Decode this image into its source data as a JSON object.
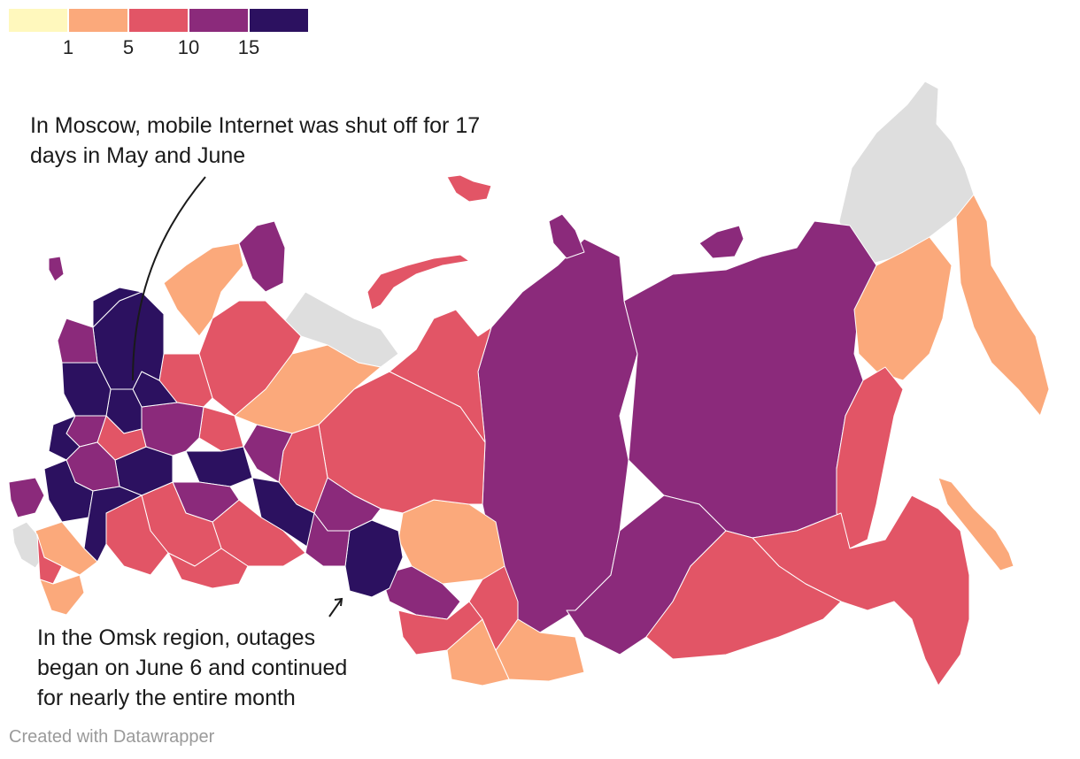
{
  "legend": {
    "colors": [
      "#fff8bd",
      "#fba97b",
      "#e25566",
      "#8b2a7b",
      "#2c1160"
    ],
    "tick_labels": [
      "1",
      "5",
      "10",
      "15"
    ]
  },
  "colors": {
    "no_data": "#dedede",
    "background": "#ffffff"
  },
  "annotations": {
    "moscow": "In Moscow, mobile Internet was shut off for 17 days in May and June",
    "omsk": "In the Omsk region, outages began on June 6 and continued for nearly the entire month"
  },
  "credit": "Created with Datawrapper"
}
